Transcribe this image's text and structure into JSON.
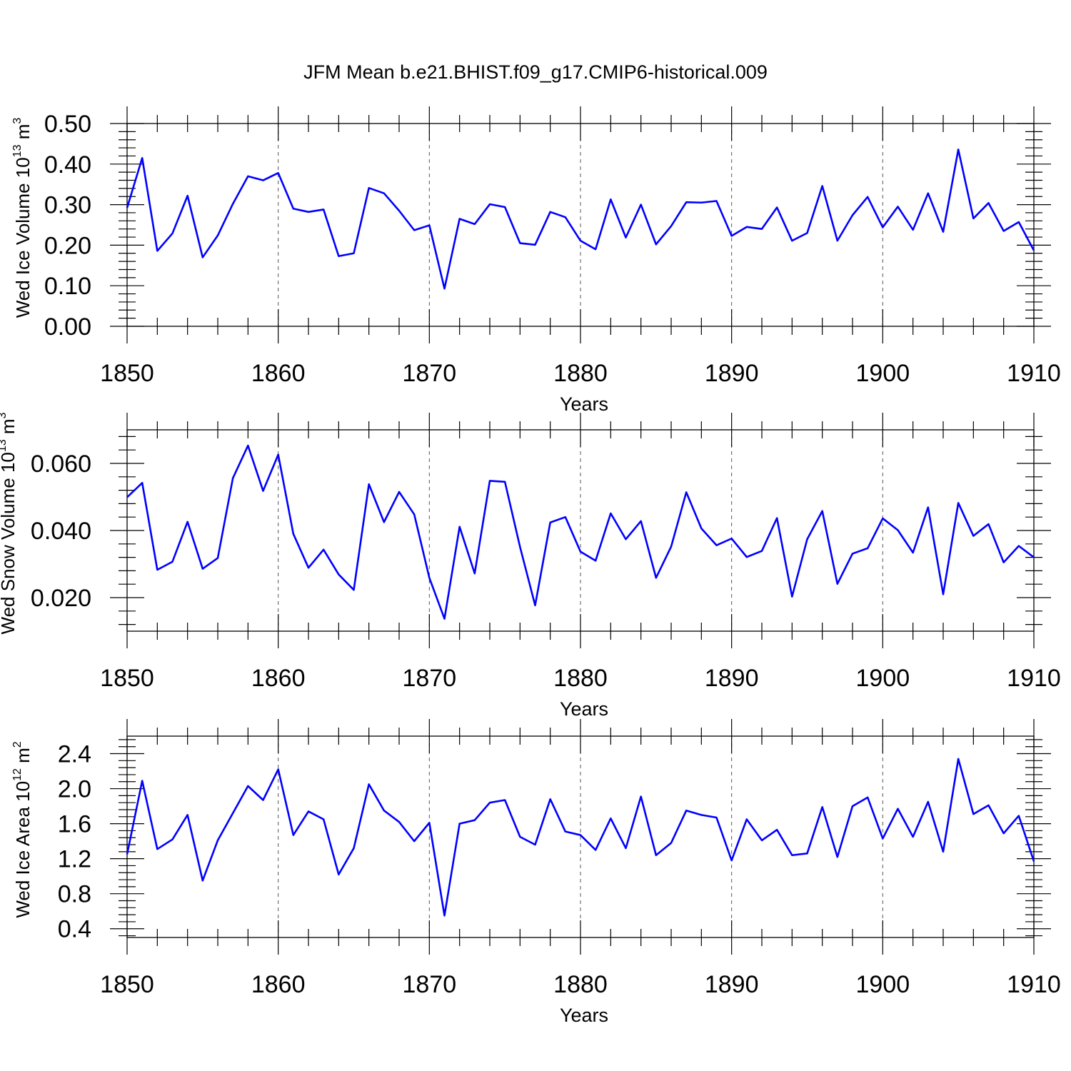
{
  "title": "JFM Mean b.e21.BHIST.f09_g17.CMIP6-historical.009",
  "line_color": "#0000ff",
  "chart_data": [
    {
      "type": "line",
      "title": "JFM Mean b.e21.BHIST.f09_g17.CMIP6-historical.009",
      "xlabel": "Years",
      "ylabel": {
        "prefix": "Wed Ice Volume 10",
        "exponent": "13",
        "unit": "m",
        "unit_exponent": "3"
      },
      "xlim": [
        1850,
        1910
      ],
      "ylim": [
        0.0,
        0.5
      ],
      "xticks": [
        1850,
        1860,
        1870,
        1880,
        1890,
        1900,
        1910
      ],
      "yticks": [
        0.0,
        0.1,
        0.2,
        0.3,
        0.4,
        0.5
      ],
      "ytick_labels": [
        "0.00",
        "0.10",
        "0.20",
        "0.30",
        "0.40",
        "0.50"
      ],
      "x_start": 1850,
      "series": [
        {
          "name": "Wed Ice Volume",
          "values": [
            0.292,
            0.415,
            0.186,
            0.229,
            0.322,
            0.17,
            0.224,
            0.302,
            0.37,
            0.36,
            0.378,
            0.29,
            0.282,
            0.288,
            0.173,
            0.18,
            0.341,
            0.328,
            0.285,
            0.237,
            0.249,
            0.093,
            0.265,
            0.252,
            0.301,
            0.294,
            0.205,
            0.201,
            0.282,
            0.269,
            0.211,
            0.19,
            0.313,
            0.219,
            0.3,
            0.202,
            0.247,
            0.306,
            0.305,
            0.309,
            0.223,
            0.245,
            0.24,
            0.293,
            0.211,
            0.23,
            0.346,
            0.211,
            0.274,
            0.319,
            0.244,
            0.295,
            0.238,
            0.328,
            0.233,
            0.436,
            0.266,
            0.304,
            0.235,
            0.257,
            0.187
          ]
        }
      ]
    },
    {
      "type": "line",
      "xlabel": "Years",
      "ylabel": {
        "prefix": "Wed Snow Volume 10",
        "exponent": "13",
        "unit": "m",
        "unit_exponent": "3"
      },
      "xlim": [
        1850,
        1910
      ],
      "ylim": [
        0.01,
        0.07
      ],
      "xticks": [
        1850,
        1860,
        1870,
        1880,
        1890,
        1900,
        1910
      ],
      "yticks": [
        0.02,
        0.04,
        0.06
      ],
      "ytick_labels": [
        "0.020",
        "0.040",
        "0.060"
      ],
      "x_start": 1850,
      "series": [
        {
          "name": "Wed Snow Volume",
          "values": [
            0.0499,
            0.0542,
            0.0283,
            0.0307,
            0.0426,
            0.0286,
            0.0318,
            0.0556,
            0.0653,
            0.0518,
            0.0626,
            0.039,
            0.0289,
            0.0343,
            0.0269,
            0.0223,
            0.0538,
            0.0425,
            0.0515,
            0.0448,
            0.0259,
            0.0137,
            0.0411,
            0.0272,
            0.0548,
            0.0545,
            0.0351,
            0.0177,
            0.0424,
            0.044,
            0.0337,
            0.031,
            0.0451,
            0.0374,
            0.0428,
            0.0259,
            0.0352,
            0.0514,
            0.0406,
            0.0356,
            0.0376,
            0.0321,
            0.0339,
            0.0437,
            0.0203,
            0.0374,
            0.0458,
            0.0241,
            0.0331,
            0.0347,
            0.0436,
            0.0401,
            0.0334,
            0.0469,
            0.021,
            0.0482,
            0.0384,
            0.0419,
            0.0305,
            0.0354,
            0.032
          ]
        }
      ]
    },
    {
      "type": "line",
      "xlabel": "Years",
      "ylabel": {
        "prefix": "Wed Ice Area 10",
        "exponent": "12",
        "unit": "m",
        "unit_exponent": "2"
      },
      "xlim": [
        1850,
        1910
      ],
      "ylim": [
        0.3,
        2.6
      ],
      "xticks": [
        1850,
        1860,
        1870,
        1880,
        1890,
        1900,
        1910
      ],
      "yticks": [
        0.4,
        0.8,
        1.2,
        1.6,
        2.0,
        2.4
      ],
      "ytick_labels": [
        "0.4",
        "0.8",
        "1.2",
        "1.6",
        "2.0",
        "2.4"
      ],
      "x_start": 1850,
      "series": [
        {
          "name": "Wed Ice Area",
          "values": [
            1.25,
            2.09,
            1.31,
            1.42,
            1.7,
            0.95,
            1.41,
            1.72,
            2.03,
            1.87,
            2.22,
            1.47,
            1.74,
            1.65,
            1.02,
            1.32,
            2.05,
            1.75,
            1.62,
            1.4,
            1.61,
            0.55,
            1.6,
            1.64,
            1.84,
            1.87,
            1.45,
            1.36,
            1.88,
            1.51,
            1.47,
            1.3,
            1.66,
            1.32,
            1.91,
            1.24,
            1.38,
            1.75,
            1.7,
            1.67,
            1.18,
            1.65,
            1.41,
            1.53,
            1.24,
            1.26,
            1.79,
            1.22,
            1.8,
            1.9,
            1.43,
            1.77,
            1.45,
            1.85,
            1.28,
            2.34,
            1.71,
            1.81,
            1.49,
            1.69,
            1.17
          ]
        }
      ]
    }
  ]
}
